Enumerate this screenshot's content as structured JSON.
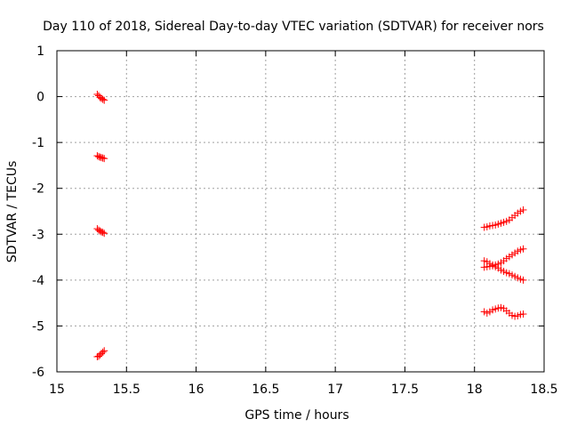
{
  "chart_data": {
    "type": "scatter",
    "title": "Day 110 of 2018, Sidereal Day-to-day VTEC variation (SDTVAR) for receiver nors",
    "xlabel": "GPS time / hours",
    "ylabel": "SDTVAR / TECUs",
    "xlim": [
      15,
      18.5
    ],
    "ylim": [
      -6,
      1
    ],
    "xticks": [
      15,
      15.5,
      16,
      16.5,
      17,
      17.5,
      18,
      18.5
    ],
    "xtick_labels": [
      "15",
      "15.5",
      "16",
      "16.5",
      "17",
      "17.5",
      "18",
      "18.5"
    ],
    "yticks": [
      -6,
      -5,
      -4,
      -3,
      -2,
      -1,
      0,
      1
    ],
    "ytick_labels": [
      "-6",
      "-5",
      "-4",
      "-3",
      "-2",
      "-1",
      "0",
      "1"
    ],
    "grid": true,
    "marker": "+",
    "marker_color": "#ff0000",
    "series": [
      {
        "name": "SDTVAR",
        "x": [
          15.29,
          15.3,
          15.31,
          15.32,
          15.33,
          15.34,
          15.29,
          15.3,
          15.31,
          15.32,
          15.33,
          15.34,
          15.29,
          15.3,
          15.31,
          15.32,
          15.33,
          15.34,
          15.29,
          15.3,
          15.31,
          15.32,
          15.33,
          15.34,
          18.07,
          18.09,
          18.11,
          18.13,
          18.15,
          18.17,
          18.19,
          18.21,
          18.23,
          18.25,
          18.27,
          18.29,
          18.31,
          18.33,
          18.35,
          18.07,
          18.09,
          18.11,
          18.13,
          18.15,
          18.17,
          18.19,
          18.21,
          18.23,
          18.25,
          18.27,
          18.29,
          18.31,
          18.33,
          18.35,
          18.07,
          18.09,
          18.11,
          18.13,
          18.15,
          18.17,
          18.19,
          18.21,
          18.23,
          18.25,
          18.27,
          18.29,
          18.31,
          18.33,
          18.35,
          18.07,
          18.09,
          18.11,
          18.13,
          18.15,
          18.17,
          18.19,
          18.21,
          18.23,
          18.25,
          18.27,
          18.29,
          18.31,
          18.33,
          18.35
        ],
        "y": [
          0.05,
          0.02,
          -0.02,
          -0.04,
          -0.06,
          -0.08,
          -1.29,
          -1.31,
          -1.32,
          -1.33,
          -1.34,
          -1.35,
          -2.88,
          -2.91,
          -2.93,
          -2.95,
          -2.96,
          -2.98,
          -5.67,
          -5.66,
          -5.63,
          -5.6,
          -5.57,
          -5.54,
          -2.85,
          -2.84,
          -2.82,
          -2.81,
          -2.8,
          -2.78,
          -2.76,
          -2.74,
          -2.72,
          -2.69,
          -2.64,
          -2.59,
          -2.54,
          -2.5,
          -2.47,
          -3.58,
          -3.6,
          -3.64,
          -3.67,
          -3.71,
          -3.74,
          -3.78,
          -3.81,
          -3.84,
          -3.86,
          -3.89,
          -3.92,
          -3.95,
          -3.98,
          -4.0,
          -3.72,
          -3.71,
          -3.7,
          -3.69,
          -3.67,
          -3.65,
          -3.62,
          -3.58,
          -3.53,
          -3.49,
          -3.45,
          -3.41,
          -3.37,
          -3.34,
          -3.32,
          -4.69,
          -4.72,
          -4.69,
          -4.65,
          -4.63,
          -4.61,
          -4.6,
          -4.62,
          -4.67,
          -4.72,
          -4.77,
          -4.79,
          -4.78,
          -4.75,
          -4.74
        ]
      }
    ]
  }
}
